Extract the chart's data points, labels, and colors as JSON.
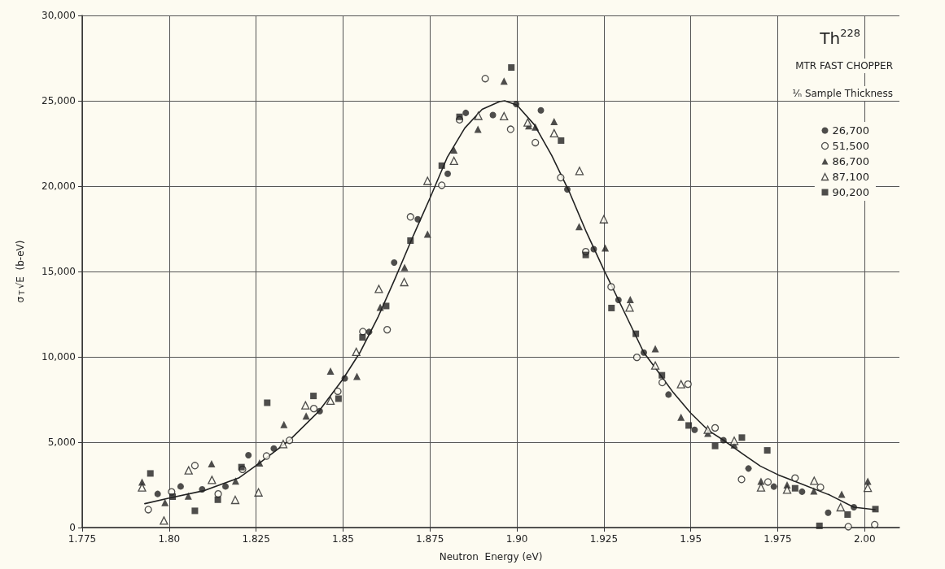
{
  "chart_data": {
    "type": "scatter",
    "title": "Th$^{228}$",
    "subtitle": "MTR FAST CHOPPER",
    "legend_title": "¹⁄ₙ Sample Thickness",
    "xlabel": "Neutron  Energy (eV)",
    "ylabel": "σ$_{T}$√E  (b-eV)",
    "xlim": [
      1.775,
      2.01
    ],
    "xticks": [
      1.775,
      {
        "value": 1.8,
        "label": "1.80"
      },
      1.825,
      {
        "value": 1.85,
        "label": "1.85"
      },
      1.875,
      {
        "value": 1.9,
        "label": "1.90"
      },
      1.925,
      {
        "value": 1.95,
        "label": "1.95"
      },
      1.975,
      {
        "value": 2.0,
        "label": "2.00"
      }
    ],
    "ylim": [
      0,
      30000
    ],
    "yticks": [
      0,
      {
        "value": 5000,
        "label": "5,000"
      },
      {
        "value": 10000,
        "label": "10,000"
      },
      {
        "value": 15000,
        "label": "15,000"
      },
      {
        "value": 20000,
        "label": "20,000"
      },
      {
        "value": 25000,
        "label": "25,000"
      },
      {
        "value": 30000,
        "label": "30,000"
      }
    ],
    "grid": true,
    "legend": "top right",
    "series": [
      {
        "name": "26,700",
        "color": "#222222",
        "marker": "circle",
        "x": [
          1.7967,
          1.8033,
          1.8095,
          1.8162,
          1.8228,
          1.8301,
          1.8433,
          1.8505,
          1.8575,
          1.8647,
          1.8715,
          1.8801,
          1.8853,
          1.8931,
          1.8998,
          1.9069,
          1.9145,
          1.9221,
          1.9292,
          1.9365,
          1.9436,
          1.9511,
          1.9594,
          1.9666,
          1.9739,
          1.982,
          1.9895,
          1.9969
        ],
        "values": [
          1970,
          2410,
          2240,
          2410,
          4240,
          4630,
          6820,
          8740,
          11460,
          15520,
          18060,
          20730,
          24290,
          24170,
          24810,
          24440,
          19810,
          16310,
          13330,
          10250,
          7790,
          5730,
          5120,
          3460,
          2400,
          2100,
          870,
          1190
        ]
      },
      {
        "name": "51,500",
        "color": "#222222",
        "marker": "circle",
        "x": [
          1.794,
          1.8007,
          1.8074,
          1.8141,
          1.8211,
          1.828,
          1.8346,
          1.8416,
          1.8485,
          1.8557,
          1.8627,
          1.8694,
          1.8784,
          1.8835,
          1.8909,
          1.8982,
          1.9053,
          1.9126,
          1.9198,
          1.9271,
          1.9345,
          1.9418,
          1.9492,
          1.957,
          1.9646,
          1.9722,
          1.98,
          1.9873,
          1.9953,
          2.0029
        ],
        "values": [
          1050,
          2090,
          3630,
          1970,
          3410,
          4190,
          5110,
          6970,
          7980,
          11480,
          11590,
          18200,
          20050,
          23890,
          26300,
          23330,
          22550,
          20500,
          16160,
          14100,
          9970,
          8500,
          8400,
          5840,
          2820,
          2670,
          2900,
          2360,
          50,
          170
        ]
      },
      {
        "name": "86,700",
        "color": "#222222",
        "marker": "triangle",
        "x": [
          1.7922,
          1.7988,
          1.8055,
          1.8122,
          1.8191,
          1.826,
          1.833,
          1.8394,
          1.8464,
          1.854,
          1.8607,
          1.8677,
          1.8743,
          1.8819,
          1.8888,
          1.8963,
          1.9034,
          1.9053,
          1.9107,
          1.9179,
          1.9254,
          1.9326,
          1.9398,
          1.9472,
          1.9549,
          1.9625,
          1.9702,
          1.9777,
          1.9854,
          1.9934,
          2.0009
        ],
        "values": [
          2670,
          1460,
          1840,
          3740,
          2730,
          3780,
          6030,
          6540,
          9170,
          8860,
          12900,
          15240,
          17190,
          22120,
          23330,
          26160,
          23540,
          23460,
          23780,
          17630,
          16380,
          13360,
          10480,
          6460,
          5520,
          4840,
          2710,
          2500,
          2140,
          1950,
          2710
        ]
      },
      {
        "name": "87,100",
        "color": "#222222",
        "marker": "triangle",
        "x": [
          1.7922,
          1.7985,
          1.8056,
          1.8123,
          1.819,
          1.8257,
          1.8328,
          1.8392,
          1.8464,
          1.8538,
          1.8603,
          1.8676,
          1.8743,
          1.8819,
          1.8889,
          1.8963,
          1.9031,
          1.9107,
          1.918,
          1.925,
          1.9324,
          1.9398,
          1.9472,
          1.9549,
          1.9625,
          1.9702,
          1.9777,
          1.9855,
          1.9931,
          2.0009
        ],
        "values": [
          2350,
          410,
          3350,
          2790,
          1620,
          2060,
          4890,
          7160,
          7430,
          10290,
          13980,
          14380,
          20310,
          21480,
          24120,
          24100,
          23730,
          23100,
          20890,
          18060,
          12890,
          9490,
          8400,
          5730,
          5080,
          2350,
          2220,
          2740,
          1190,
          2330
        ]
      },
      {
        "name": "90,200",
        "color": "#222222",
        "marker": "square",
        "x": [
          1.7946,
          1.801,
          1.8074,
          1.814,
          1.8208,
          1.8282,
          1.8415,
          1.8487,
          1.8556,
          1.8624,
          1.8694,
          1.8784,
          1.8835,
          1.8984,
          1.9127,
          1.9198,
          1.9272,
          1.9342,
          1.9417,
          1.9494,
          1.957,
          1.9647,
          1.972,
          1.98,
          1.987,
          1.9951,
          2.0031
        ],
        "values": [
          3170,
          1810,
          980,
          1630,
          3540,
          7310,
          7710,
          7550,
          11140,
          12980,
          16810,
          21200,
          24060,
          26950,
          22670,
          15970,
          12860,
          11350,
          8920,
          5980,
          4780,
          5270,
          4520,
          2300,
          100,
          760,
          1080
        ]
      },
      {
        "type": "line",
        "color": "#222222",
        "marker": "none",
        "x": [
          1.793,
          1.8,
          1.81,
          1.82,
          1.826,
          1.8346,
          1.843,
          1.85,
          1.855,
          1.86,
          1.865,
          1.87,
          1.875,
          1.88,
          1.885,
          1.89,
          1.895,
          1.8965,
          1.9,
          1.905,
          1.91,
          1.915,
          1.92,
          1.925,
          1.93,
          1.9365,
          1.94,
          1.945,
          1.95,
          1.955,
          1.9594,
          1.965,
          1.97,
          1.975,
          1.98,
          1.99,
          1.9969,
          2.003
        ],
        "values": [
          1400,
          1730,
          2160,
          2900,
          3780,
          5110,
          6800,
          8700,
          10300,
          12300,
          14600,
          17000,
          19300,
          21700,
          23400,
          24500,
          24950,
          25000,
          24750,
          23600,
          21800,
          19700,
          17300,
          15100,
          13000,
          10250,
          9300,
          7900,
          6700,
          5700,
          5120,
          4300,
          3600,
          3100,
          2700,
          1900,
          1190,
          1050
        ]
      }
    ]
  }
}
